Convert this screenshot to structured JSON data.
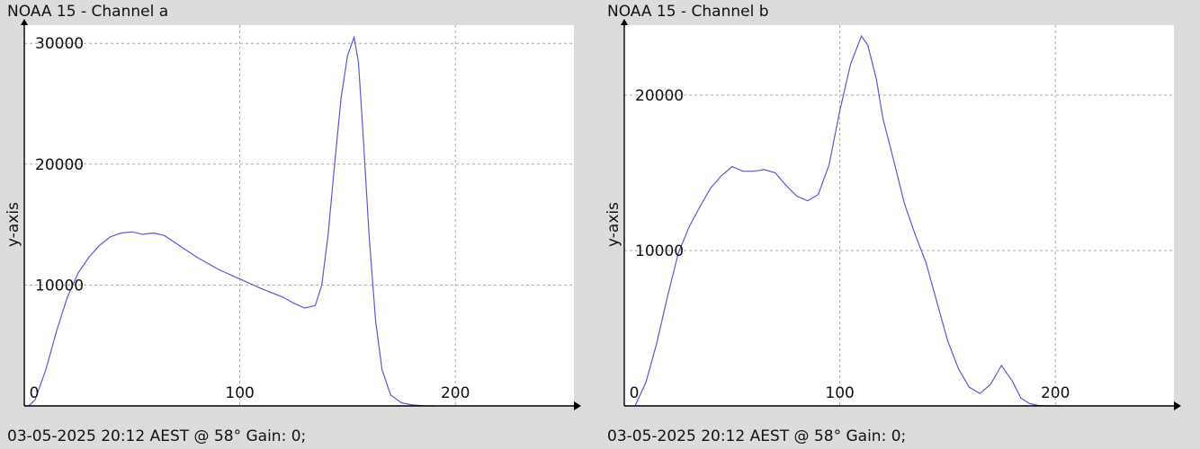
{
  "colors": {
    "background": "#dcdcdc",
    "plot_bg": "#ffffff",
    "series": "#5a5ad2",
    "grid": "#a8a8a8"
  },
  "panels": [
    {
      "title": "NOAA 15 - Channel a",
      "footer": "03-05-2025 20:12 AEST @ 58° Gain: 0;"
    },
    {
      "title": "NOAA 15 - Channel b",
      "footer": "03-05-2025 20:12 AEST @ 58° Gain: 0;"
    }
  ],
  "chart_data": [
    {
      "type": "line",
      "title": "NOAA 15 - Channel a",
      "xlabel": "",
      "ylabel": "y-axis",
      "xlim": [
        0,
        255
      ],
      "ylim": [
        0,
        31500
      ],
      "x_ticks": [
        0,
        100,
        200
      ],
      "x_tick_labels": [
        "0",
        "100",
        "200"
      ],
      "y_ticks": [
        10000,
        20000,
        30000
      ],
      "y_tick_labels": [
        "10000",
        "20000",
        "30000"
      ],
      "grid": true,
      "series": [
        {
          "x": [
            2,
            5,
            10,
            15,
            20,
            25,
            30,
            35,
            40,
            45,
            50,
            55,
            60,
            65,
            70,
            75,
            80,
            90,
            100,
            110,
            120,
            125,
            130,
            135,
            138,
            141,
            144,
            147,
            150,
            153,
            155,
            157,
            160,
            163,
            166,
            170,
            175,
            180,
            185,
            190
          ],
          "y": [
            0,
            500,
            3000,
            6200,
            9000,
            11000,
            12300,
            13300,
            14000,
            14300,
            14400,
            14200,
            14300,
            14100,
            13500,
            12900,
            12300,
            11300,
            10500,
            9700,
            9000,
            8500,
            8100,
            8300,
            10000,
            14200,
            20000,
            25500,
            29000,
            30500,
            28500,
            23000,
            14000,
            7000,
            3000,
            900,
            250,
            80,
            10,
            0
          ]
        }
      ]
    },
    {
      "type": "line",
      "title": "NOAA 15 - Channel b",
      "xlabel": "",
      "ylabel": "y-axis",
      "xlim": [
        0,
        255
      ],
      "ylim": [
        0,
        24500
      ],
      "x_ticks": [
        0,
        100,
        200
      ],
      "x_tick_labels": [
        "0",
        "100",
        "200"
      ],
      "y_ticks": [
        10000,
        20000
      ],
      "y_tick_labels": [
        "10000",
        "20000"
      ],
      "grid": true,
      "series": [
        {
          "x": [
            5,
            10,
            15,
            20,
            25,
            30,
            35,
            40,
            45,
            50,
            55,
            60,
            65,
            70,
            75,
            80,
            85,
            90,
            95,
            100,
            105,
            110,
            113,
            117,
            120,
            125,
            130,
            135,
            140,
            145,
            150,
            155,
            160,
            165,
            170,
            175,
            180,
            184,
            188,
            192,
            197,
            202
          ],
          "y": [
            0,
            1500,
            4000,
            7000,
            9800,
            11500,
            12800,
            14000,
            14800,
            15400,
            15100,
            15100,
            15200,
            15000,
            14200,
            13500,
            13200,
            13600,
            15500,
            19000,
            22000,
            23800,
            23200,
            21000,
            18500,
            15800,
            13000,
            11000,
            9200,
            6700,
            4200,
            2400,
            1200,
            800,
            1400,
            2600,
            1600,
            500,
            150,
            30,
            0,
            0
          ]
        }
      ]
    }
  ]
}
